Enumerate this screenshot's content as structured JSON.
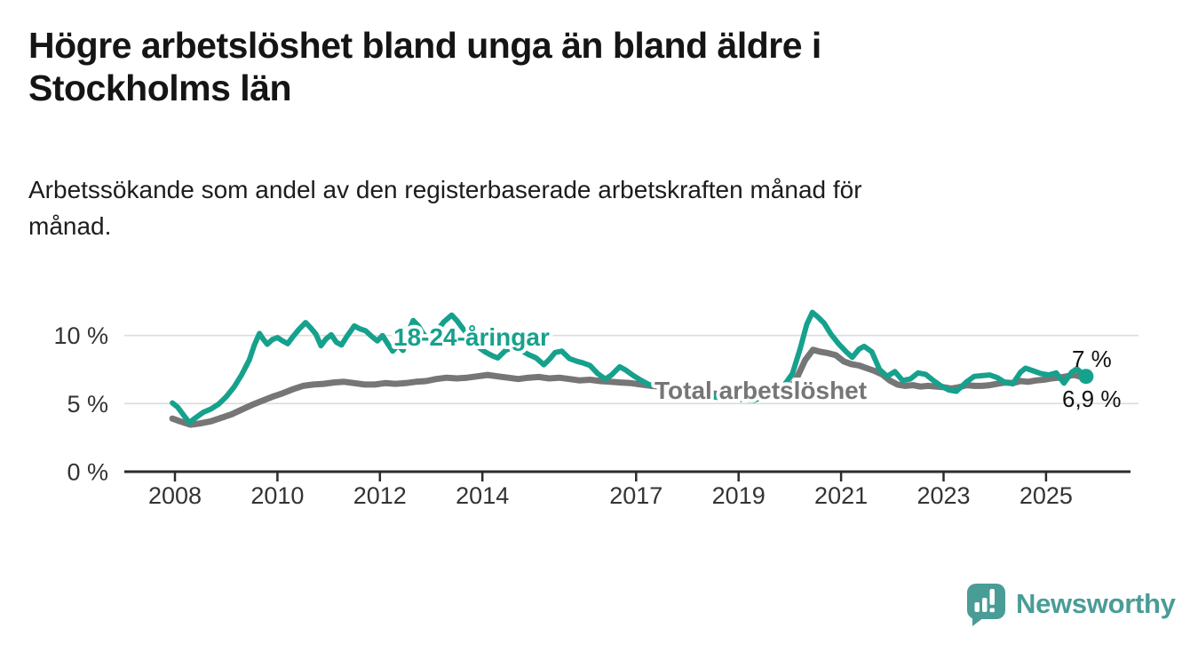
{
  "header": {
    "title_lines": [
      "Högre arbetslöshet bland unga än bland äldre i",
      "Stockholms län"
    ],
    "subtitle_lines": [
      "Arbetssökande som andel av den registerbaserade arbetskraften månad för",
      "månad."
    ]
  },
  "footer": {
    "brand": "Newsworthy",
    "logo_icon": "speech-bubble-bar-chart-icon"
  },
  "colors": {
    "youth_line": "#16a18d",
    "total_line": "#767676",
    "gridline": "#dcdcdc",
    "axis": "#2b2b2b",
    "tick_text": "#333333",
    "end_label_text": "#111111",
    "brand_teal": "#4a9c97"
  },
  "chart_data": {
    "type": "line",
    "title": "Högre arbetslöshet bland unga än bland äldre i Stockholms län",
    "subtitle": "Arbetssökande som andel av den registerbaserade arbetskraften månad för månad.",
    "unit": "%",
    "xlabel": "",
    "ylabel": "",
    "x_domain": [
      2007.9,
      2026.1
    ],
    "ylim": [
      0,
      12.5
    ],
    "grid": "horizontal",
    "legend_position": "inline-labels",
    "y_ticks": [
      {
        "value": 0,
        "label": "0 %"
      },
      {
        "value": 5,
        "label": "5 %"
      },
      {
        "value": 10,
        "label": "10 %"
      }
    ],
    "x_ticks": [
      {
        "value": 2008,
        "label": "2008"
      },
      {
        "value": 2010,
        "label": "2010"
      },
      {
        "value": 2012,
        "label": "2012"
      },
      {
        "value": 2014,
        "label": "2014"
      },
      {
        "value": 2017,
        "label": "2017"
      },
      {
        "value": 2019,
        "label": "2019"
      },
      {
        "value": 2021,
        "label": "2021"
      },
      {
        "value": 2023,
        "label": "2023"
      },
      {
        "value": 2025,
        "label": "2025"
      }
    ],
    "series": [
      {
        "name": "18-24-åringar",
        "color": "#16a18d",
        "end_label": "7 %",
        "end_value": 7.0,
        "end_marker": true,
        "points": [
          [
            2007.95,
            5.05
          ],
          [
            2008.05,
            4.75
          ],
          [
            2008.12,
            4.4
          ],
          [
            2008.2,
            4.0
          ],
          [
            2008.28,
            3.6
          ],
          [
            2008.4,
            3.95
          ],
          [
            2008.55,
            4.35
          ],
          [
            2008.7,
            4.6
          ],
          [
            2008.85,
            4.95
          ],
          [
            2009.0,
            5.5
          ],
          [
            2009.15,
            6.2
          ],
          [
            2009.3,
            7.1
          ],
          [
            2009.45,
            8.2
          ],
          [
            2009.55,
            9.3
          ],
          [
            2009.65,
            10.15
          ],
          [
            2009.72,
            9.75
          ],
          [
            2009.8,
            9.35
          ],
          [
            2009.9,
            9.7
          ],
          [
            2010.0,
            9.85
          ],
          [
            2010.1,
            9.6
          ],
          [
            2010.2,
            9.4
          ],
          [
            2010.3,
            9.9
          ],
          [
            2010.42,
            10.45
          ],
          [
            2010.55,
            10.95
          ],
          [
            2010.65,
            10.55
          ],
          [
            2010.75,
            10.1
          ],
          [
            2010.85,
            9.25
          ],
          [
            2010.95,
            9.75
          ],
          [
            2011.05,
            10.05
          ],
          [
            2011.15,
            9.5
          ],
          [
            2011.25,
            9.3
          ],
          [
            2011.35,
            9.9
          ],
          [
            2011.5,
            10.7
          ],
          [
            2011.6,
            10.5
          ],
          [
            2011.72,
            10.35
          ],
          [
            2011.85,
            9.9
          ],
          [
            2011.95,
            9.6
          ],
          [
            2012.05,
            10.0
          ],
          [
            2012.15,
            9.4
          ],
          [
            2012.25,
            8.85
          ],
          [
            2012.35,
            9.3
          ],
          [
            2012.45,
            8.9
          ],
          [
            2012.55,
            10.2
          ],
          [
            2012.65,
            11.1
          ],
          [
            2012.75,
            10.7
          ],
          [
            2012.85,
            10.1
          ],
          [
            2012.95,
            9.8
          ],
          [
            2013.1,
            10.3
          ],
          [
            2013.25,
            11.0
          ],
          [
            2013.4,
            11.5
          ],
          [
            2013.5,
            11.1
          ],
          [
            2013.6,
            10.6
          ],
          [
            2013.75,
            9.9
          ],
          [
            2013.9,
            9.2
          ],
          [
            2014.05,
            8.8
          ],
          [
            2014.2,
            8.5
          ],
          [
            2014.3,
            8.35
          ],
          [
            2014.45,
            8.9
          ],
          [
            2014.6,
            9.15
          ],
          [
            2014.75,
            8.9
          ],
          [
            2014.9,
            8.6
          ],
          [
            2015.05,
            8.35
          ],
          [
            2015.2,
            7.85
          ],
          [
            2015.32,
            8.3
          ],
          [
            2015.42,
            8.75
          ],
          [
            2015.55,
            8.85
          ],
          [
            2015.7,
            8.3
          ],
          [
            2015.85,
            8.1
          ],
          [
            2015.95,
            8.0
          ],
          [
            2016.1,
            7.8
          ],
          [
            2016.25,
            7.2
          ],
          [
            2016.4,
            6.8
          ],
          [
            2016.52,
            7.1
          ],
          [
            2016.68,
            7.7
          ],
          [
            2016.8,
            7.45
          ],
          [
            2016.95,
            7.05
          ],
          [
            2017.1,
            6.7
          ],
          [
            2017.25,
            6.4
          ],
          [
            2017.4,
            6.3
          ],
          [
            2017.6,
            6.1
          ],
          [
            2017.8,
            5.95
          ],
          [
            2018.0,
            5.8
          ],
          [
            2018.3,
            5.6
          ],
          [
            2018.6,
            5.45
          ],
          [
            2018.9,
            5.35
          ],
          [
            2019.1,
            5.3
          ],
          [
            2019.3,
            5.25
          ],
          [
            2019.5,
            5.5
          ],
          [
            2019.7,
            5.9
          ],
          [
            2019.9,
            6.4
          ],
          [
            2020.05,
            7.2
          ],
          [
            2020.2,
            9.0
          ],
          [
            2020.33,
            10.8
          ],
          [
            2020.44,
            11.7
          ],
          [
            2020.55,
            11.35
          ],
          [
            2020.67,
            10.9
          ],
          [
            2020.8,
            10.1
          ],
          [
            2020.95,
            9.4
          ],
          [
            2021.1,
            8.8
          ],
          [
            2021.22,
            8.4
          ],
          [
            2021.35,
            9.0
          ],
          [
            2021.45,
            9.2
          ],
          [
            2021.6,
            8.8
          ],
          [
            2021.75,
            7.5
          ],
          [
            2021.9,
            7.0
          ],
          [
            2022.05,
            7.35
          ],
          [
            2022.2,
            6.7
          ],
          [
            2022.35,
            6.8
          ],
          [
            2022.5,
            7.25
          ],
          [
            2022.65,
            7.15
          ],
          [
            2022.8,
            6.7
          ],
          [
            2022.95,
            6.3
          ],
          [
            2023.1,
            6.0
          ],
          [
            2023.25,
            5.9
          ],
          [
            2023.45,
            6.6
          ],
          [
            2023.6,
            7.0
          ],
          [
            2023.75,
            7.05
          ],
          [
            2023.9,
            7.1
          ],
          [
            2024.05,
            6.9
          ],
          [
            2024.2,
            6.55
          ],
          [
            2024.35,
            6.45
          ],
          [
            2024.5,
            7.3
          ],
          [
            2024.6,
            7.6
          ],
          [
            2024.75,
            7.4
          ],
          [
            2024.9,
            7.2
          ],
          [
            2025.05,
            7.1
          ],
          [
            2025.2,
            7.25
          ],
          [
            2025.35,
            6.5
          ],
          [
            2025.5,
            7.3
          ],
          [
            2025.6,
            7.55
          ],
          [
            2025.78,
            7.0
          ]
        ]
      },
      {
        "name": "Total arbetslöshet",
        "color": "#767676",
        "end_label": "6,9 %",
        "end_value": 6.9,
        "end_marker": false,
        "points": [
          [
            2007.95,
            3.9
          ],
          [
            2008.1,
            3.7
          ],
          [
            2008.3,
            3.45
          ],
          [
            2008.5,
            3.55
          ],
          [
            2008.7,
            3.7
          ],
          [
            2008.9,
            3.95
          ],
          [
            2009.1,
            4.2
          ],
          [
            2009.3,
            4.55
          ],
          [
            2009.5,
            4.9
          ],
          [
            2009.7,
            5.2
          ],
          [
            2009.9,
            5.5
          ],
          [
            2010.1,
            5.75
          ],
          [
            2010.3,
            6.05
          ],
          [
            2010.5,
            6.3
          ],
          [
            2010.7,
            6.4
          ],
          [
            2010.9,
            6.45
          ],
          [
            2011.1,
            6.55
          ],
          [
            2011.3,
            6.6
          ],
          [
            2011.5,
            6.5
          ],
          [
            2011.7,
            6.4
          ],
          [
            2011.9,
            6.4
          ],
          [
            2012.1,
            6.5
          ],
          [
            2012.3,
            6.45
          ],
          [
            2012.5,
            6.5
          ],
          [
            2012.7,
            6.6
          ],
          [
            2012.9,
            6.65
          ],
          [
            2013.1,
            6.8
          ],
          [
            2013.3,
            6.9
          ],
          [
            2013.5,
            6.85
          ],
          [
            2013.7,
            6.9
          ],
          [
            2013.9,
            7.0
          ],
          [
            2014.1,
            7.1
          ],
          [
            2014.3,
            7.0
          ],
          [
            2014.5,
            6.9
          ],
          [
            2014.7,
            6.8
          ],
          [
            2014.9,
            6.9
          ],
          [
            2015.1,
            6.95
          ],
          [
            2015.3,
            6.85
          ],
          [
            2015.5,
            6.9
          ],
          [
            2015.7,
            6.8
          ],
          [
            2015.9,
            6.7
          ],
          [
            2016.1,
            6.75
          ],
          [
            2016.3,
            6.65
          ],
          [
            2016.5,
            6.6
          ],
          [
            2016.7,
            6.55
          ],
          [
            2016.9,
            6.5
          ],
          [
            2017.1,
            6.4
          ],
          [
            2017.3,
            6.3
          ],
          [
            2017.5,
            6.25
          ],
          [
            2017.7,
            6.15
          ],
          [
            2017.9,
            6.05
          ],
          [
            2018.1,
            5.95
          ],
          [
            2018.4,
            5.8
          ],
          [
            2018.7,
            5.65
          ],
          [
            2019.0,
            5.55
          ],
          [
            2019.3,
            5.5
          ],
          [
            2019.6,
            5.6
          ],
          [
            2019.85,
            5.8
          ],
          [
            2020.0,
            6.1
          ],
          [
            2020.15,
            7.0
          ],
          [
            2020.3,
            8.2
          ],
          [
            2020.45,
            8.95
          ],
          [
            2020.6,
            8.8
          ],
          [
            2020.75,
            8.7
          ],
          [
            2020.9,
            8.55
          ],
          [
            2021.05,
            8.1
          ],
          [
            2021.2,
            7.9
          ],
          [
            2021.35,
            7.8
          ],
          [
            2021.5,
            7.6
          ],
          [
            2021.65,
            7.4
          ],
          [
            2021.8,
            7.15
          ],
          [
            2021.95,
            6.7
          ],
          [
            2022.1,
            6.4
          ],
          [
            2022.25,
            6.3
          ],
          [
            2022.4,
            6.35
          ],
          [
            2022.55,
            6.25
          ],
          [
            2022.7,
            6.3
          ],
          [
            2022.85,
            6.25
          ],
          [
            2023.0,
            6.2
          ],
          [
            2023.15,
            6.1
          ],
          [
            2023.3,
            6.2
          ],
          [
            2023.45,
            6.35
          ],
          [
            2023.6,
            6.3
          ],
          [
            2023.75,
            6.3
          ],
          [
            2023.9,
            6.35
          ],
          [
            2024.05,
            6.45
          ],
          [
            2024.2,
            6.55
          ],
          [
            2024.35,
            6.5
          ],
          [
            2024.5,
            6.65
          ],
          [
            2024.65,
            6.6
          ],
          [
            2024.8,
            6.7
          ],
          [
            2024.95,
            6.75
          ],
          [
            2025.1,
            6.85
          ],
          [
            2025.25,
            6.9
          ],
          [
            2025.4,
            7.0
          ],
          [
            2025.55,
            7.1
          ],
          [
            2025.75,
            6.9
          ]
        ]
      }
    ]
  }
}
